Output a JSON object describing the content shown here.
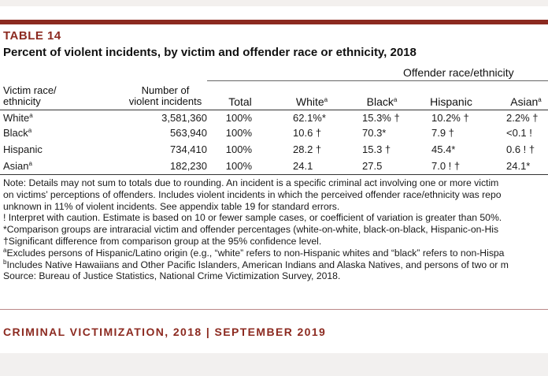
{
  "table": {
    "label": "TABLE 14",
    "title": "Percent of violent incidents, by victim and offender race or ethnicity, 2018",
    "offender_group_label": "Offender race/ethnicity",
    "headers": {
      "victim_line1": "Victim race/",
      "victim_line2": "ethnicity",
      "number_line1": "Number of",
      "number_line2": "violent incidents",
      "total": "Total",
      "white": "White",
      "white_sup": "a",
      "black": "Black",
      "black_sup": "a",
      "hispanic": "Hispanic",
      "asian": "Asian",
      "asian_sup": "a"
    },
    "rows": [
      {
        "race": "White",
        "sup": "a",
        "number": "3,581,360",
        "total": "100%",
        "white": "62.1%*",
        "black": "15.3% †",
        "hispanic": "10.2% †",
        "asian": "2.2% †"
      },
      {
        "race": "Black",
        "sup": "a",
        "number": "563,940",
        "total": "100%",
        "white": "10.6 †",
        "black": "70.3*",
        "hispanic": "7.9 †",
        "asian": "<0.1 !"
      },
      {
        "race": "Hispanic",
        "sup": "",
        "number": "734,410",
        "total": "100%",
        "white": "28.2 †",
        "black": "15.3 †",
        "hispanic": "45.4*",
        "asian": "0.6 ! †"
      },
      {
        "race": "Asian",
        "sup": "a",
        "number": "182,230",
        "total": "100%",
        "white": "24.1",
        "black": "27.5",
        "hispanic": "7.0 ! †",
        "asian": "24.1*"
      }
    ]
  },
  "notes": {
    "line1": "Note: Details may not sum to totals due to rounding. An incident is a specific criminal act involving one or more victim",
    "line2": "on victims’ perceptions of offenders. Includes violent incidents in which the perceived offender race/ethnicity was repo",
    "line3": "unknown in 11% of violent incidents. See appendix table 19 for standard errors.",
    "caution": "! Interpret with caution. Estimate is based on 10 or fewer sample cases, or coefficient of variation is greater than 50%.",
    "comparison": "*Comparison groups are intraracial victim and offender percentages (white-on-white, black-on-black, Hispanic-on-His",
    "significant": "†Significant difference from comparison group at the 95% confidence level.",
    "footnote_a_marker": "a",
    "footnote_a": "Excludes persons of Hispanic/Latino origin (e.g., “white” refers to non-Hispanic whites and “black” refers to non-Hispa",
    "footnote_b_marker": "b",
    "footnote_b": "Includes Native Hawaiians and Other Pacific Islanders, American Indians and Alaska Natives, and persons of two or m",
    "source": "Source: Bureau of Justice Statistics, National Crime Victimization Survey, 2018."
  },
  "footer": {
    "text": "CRIMINAL VICTIMIZATION, 2018 | SEPTEMBER 2019"
  },
  "colors": {
    "accent": "#8c2a20"
  }
}
